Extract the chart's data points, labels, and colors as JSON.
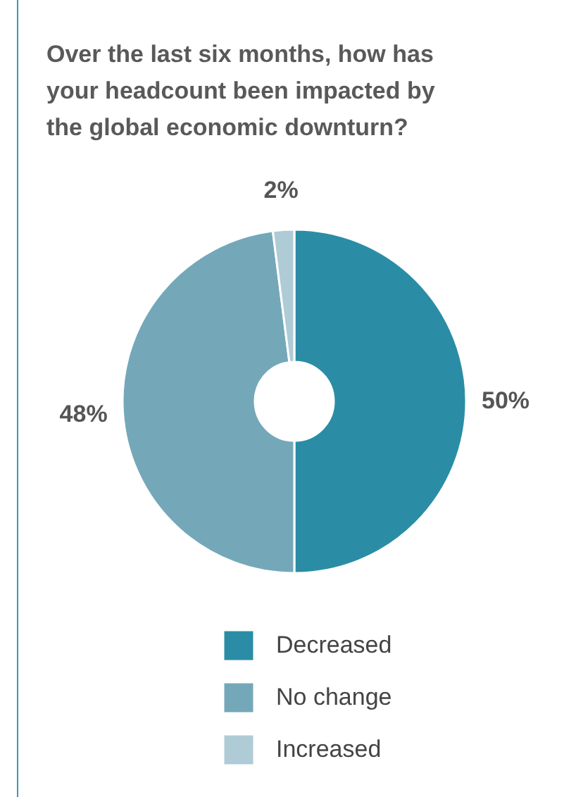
{
  "chart_data": {
    "type": "donut",
    "title": "Over the last six months, how has your headcount been impacted by the global economic downturn?",
    "categories": [
      "Decreased",
      "No change",
      "Increased"
    ],
    "values": [
      50,
      48,
      2
    ],
    "colors": [
      "#2a8da5",
      "#74a8b9",
      "#aecbd6"
    ],
    "value_labels": [
      "50%",
      "48%",
      "2%"
    ],
    "legend": "bottom"
  }
}
